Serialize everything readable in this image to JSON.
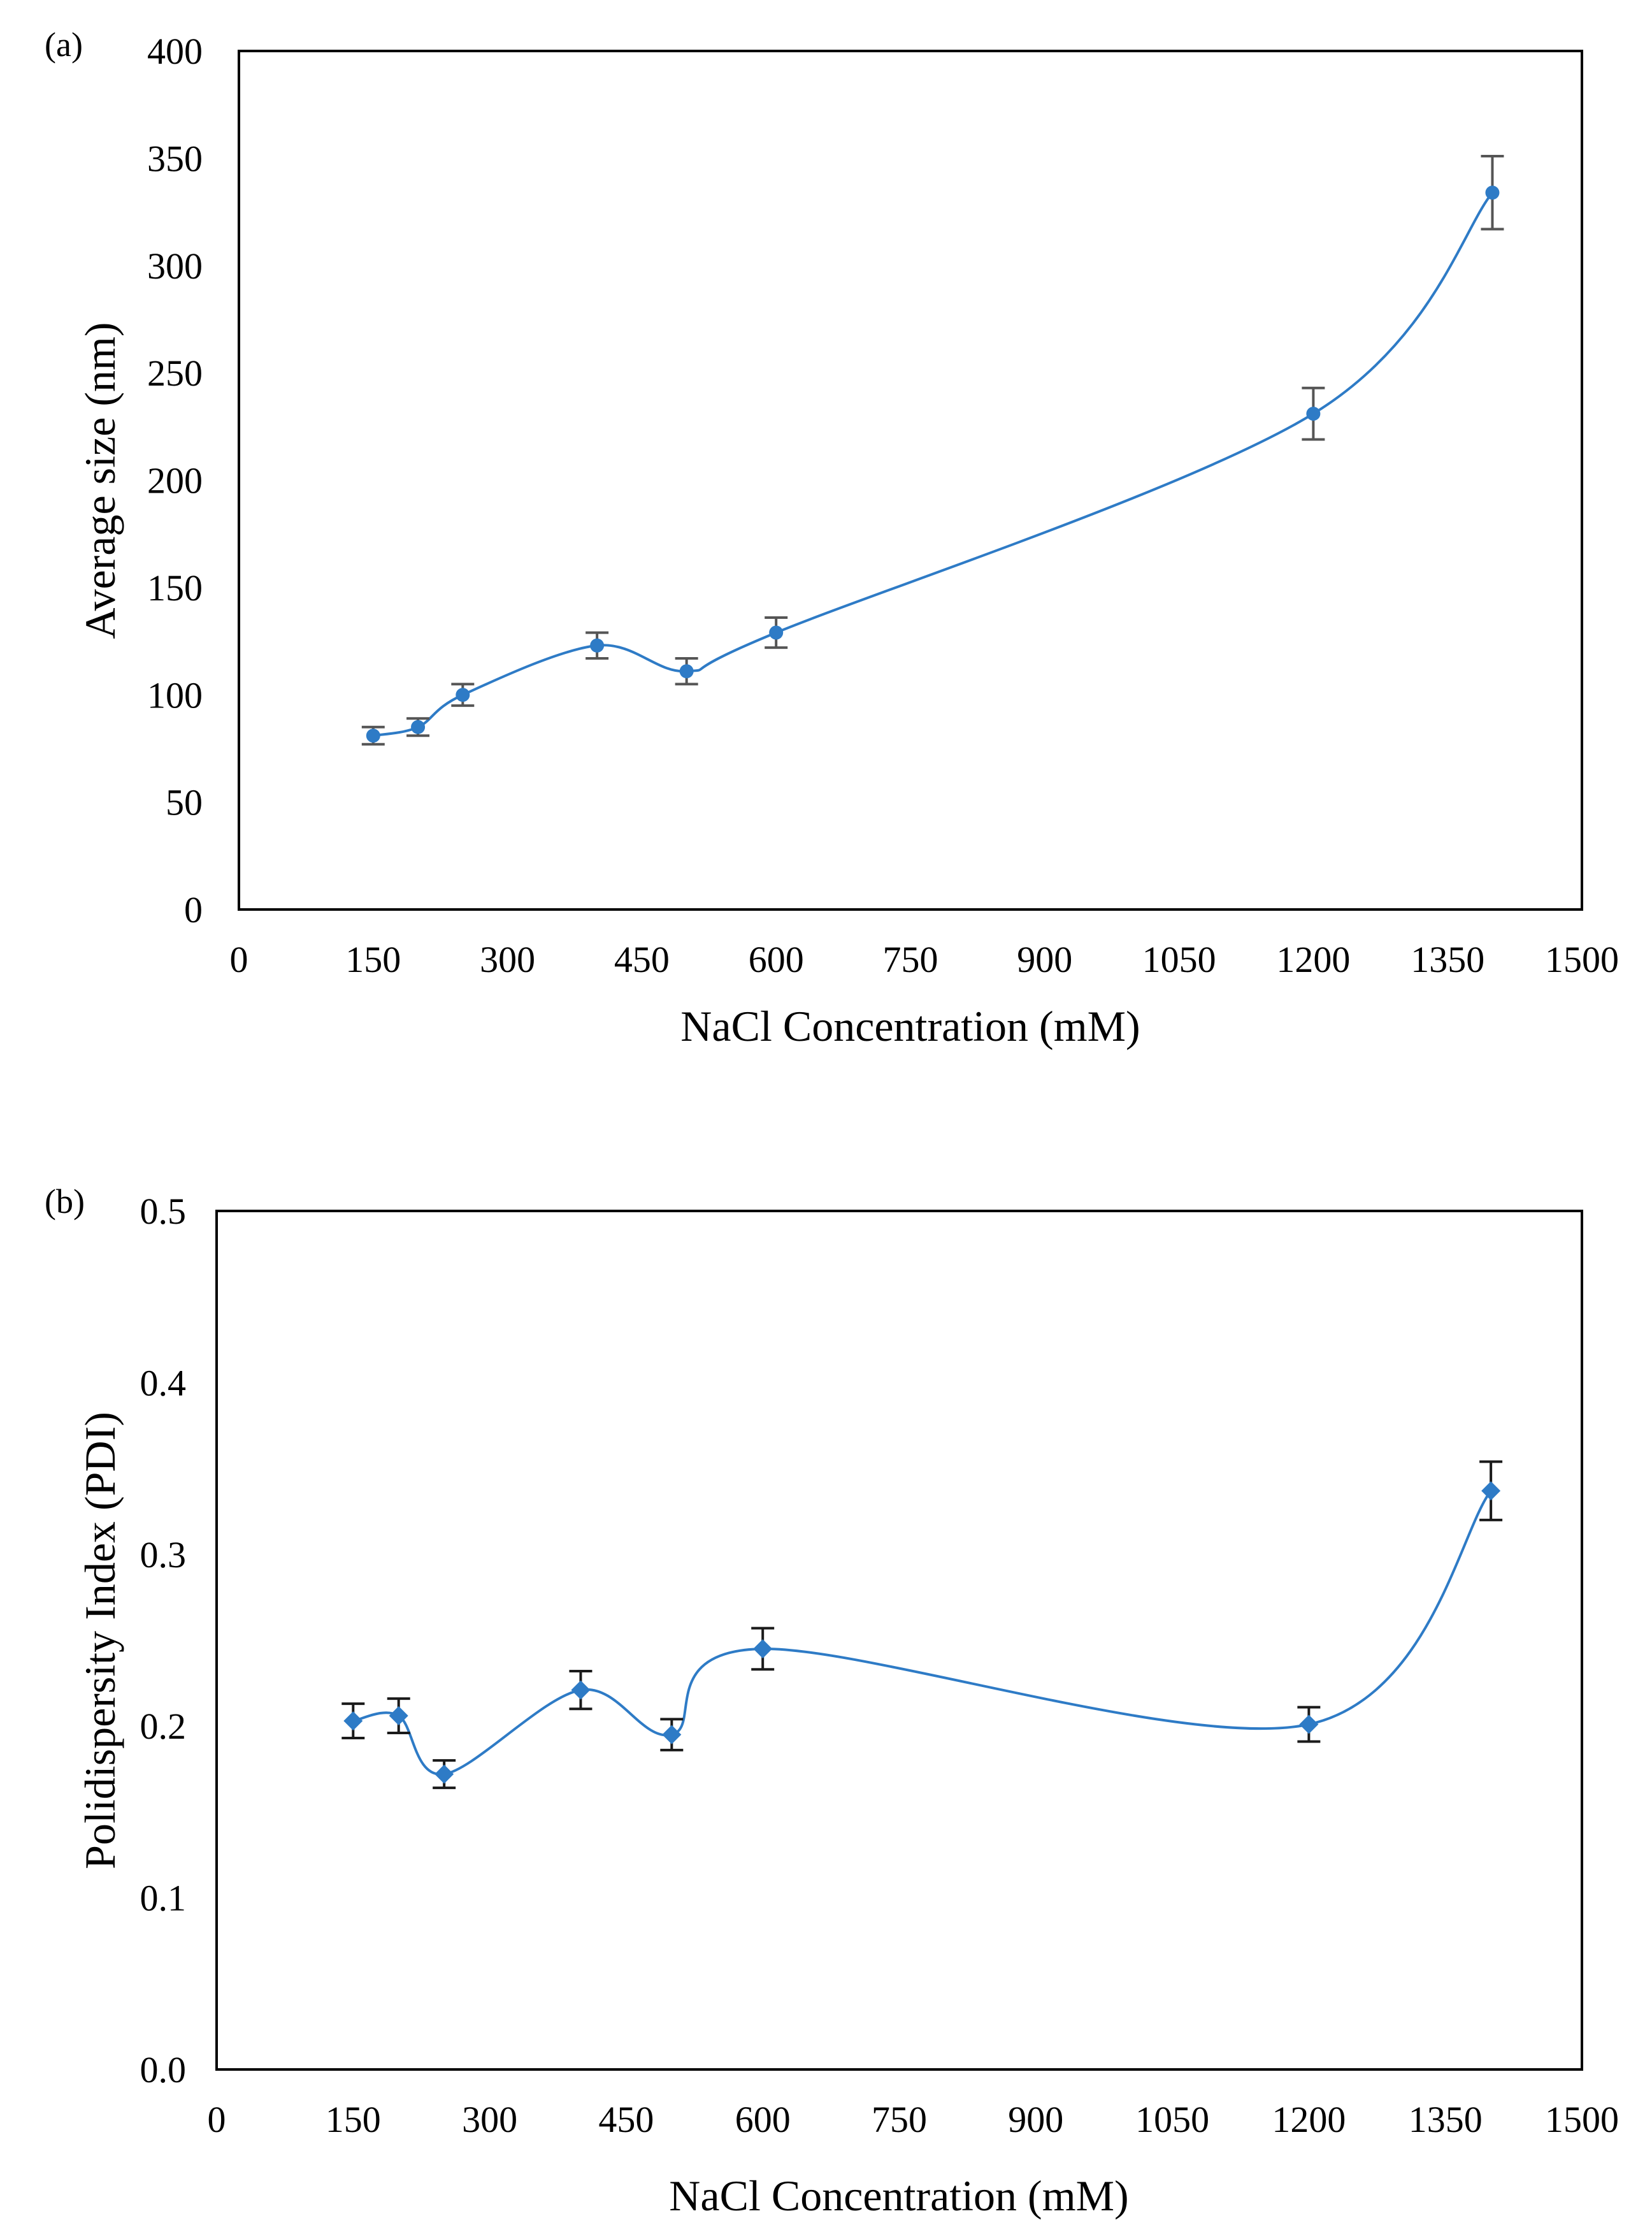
{
  "chart_data": [
    {
      "type": "scatter",
      "panel_label": "(a)",
      "title": "",
      "xlabel": "NaCl Concentration (mM)",
      "ylabel": "Average size (nm)",
      "xlim": [
        0,
        1500
      ],
      "ylim": [
        0,
        400
      ],
      "xticks": [
        "0",
        "150",
        "300",
        "450",
        "600",
        "750",
        "900",
        "1050",
        "1200",
        "1350",
        "1500"
      ],
      "yticks": [
        "0",
        "50",
        "100",
        "150",
        "200",
        "250",
        "300",
        "350",
        "400"
      ],
      "marker": "circle",
      "line": "smoothed",
      "grid": false,
      "colors": {
        "series": "#2e7bc6",
        "error": "#555555"
      },
      "series": [
        {
          "name": "Average size",
          "x": [
            150,
            200,
            250,
            400,
            500,
            600,
            1200,
            1400
          ],
          "y": [
            81,
            85,
            100,
            123,
            111,
            129,
            231,
            334
          ],
          "err": [
            4,
            4,
            5,
            6,
            6,
            7,
            12,
            17
          ]
        }
      ]
    },
    {
      "type": "scatter",
      "panel_label": "(b)",
      "title": "",
      "xlabel": "NaCl Concentration (mM)",
      "ylabel": "Polidispersity Index (PDI)",
      "xlim": [
        0,
        1500
      ],
      "ylim": [
        0,
        0.5
      ],
      "xticks": [
        "0",
        "150",
        "300",
        "450",
        "600",
        "750",
        "900",
        "1050",
        "1200",
        "1350",
        "1500"
      ],
      "yticks": [
        "0.0",
        "0.1",
        "0.2",
        "0.3",
        "0.4",
        "0.5"
      ],
      "marker": "diamond",
      "line": "smoothed",
      "grid": false,
      "colors": {
        "series": "#2e7bc6",
        "error": "#1a1a1a"
      },
      "series": [
        {
          "name": "PDI",
          "x": [
            150,
            200,
            250,
            400,
            500,
            600,
            1200,
            1400
          ],
          "y": [
            0.203,
            0.206,
            0.172,
            0.221,
            0.195,
            0.245,
            0.201,
            0.337
          ],
          "err": [
            0.01,
            0.01,
            0.008,
            0.011,
            0.009,
            0.012,
            0.01,
            0.017
          ]
        }
      ]
    }
  ]
}
